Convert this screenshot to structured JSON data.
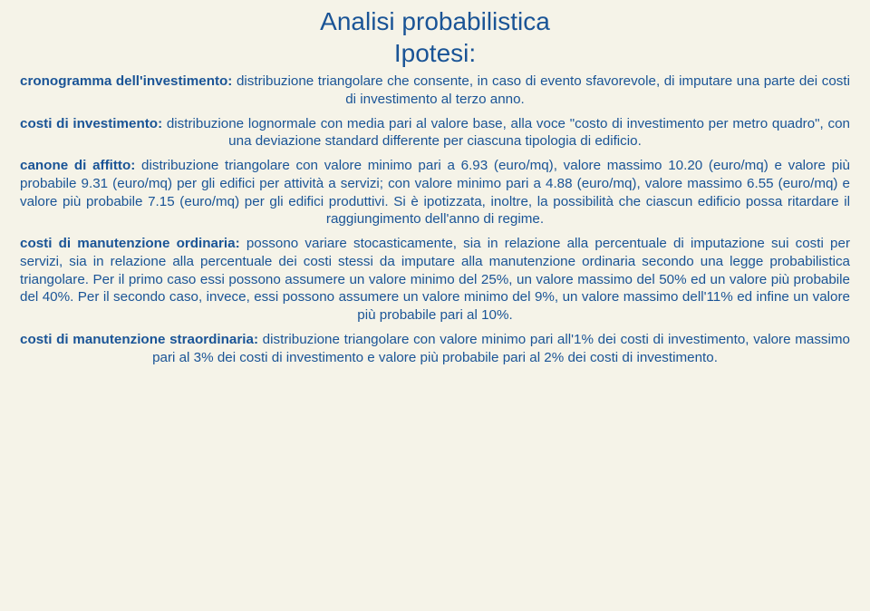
{
  "title_line1": "Analisi probabilistica",
  "title_line2": "Ipotesi:",
  "p1_bold": "cronogramma dell'investimento:",
  "p1_text": " distribuzione triangolare che consente, in caso di evento sfavorevole, di imputare una parte dei costi di investimento al terzo anno.",
  "p2_bold": "costi di investimento:",
  "p2_text": " distribuzione lognormale con media pari al valore base, alla voce \"costo di investimento per metro quadro\", con una deviazione standard differente per ciascuna tipologia di edificio.",
  "p3_bold": "canone di affitto:",
  "p3_text": " distribuzione triangolare con valore minimo pari a 6.93 (euro/mq), valore massimo 10.20 (euro/mq) e valore più probabile 9.31 (euro/mq) per gli edifici per attività a servizi; con valore minimo pari a 4.88 (euro/mq), valore massimo 6.55 (euro/mq) e valore più probabile 7.15 (euro/mq) per gli edifici produttivi. Si è ipotizzata, inoltre, la possibilità che ciascun edificio possa ritardare il raggiungimento dell'anno di regime.",
  "p4_bold": "costi di manutenzione ordinaria:",
  "p4_text": " possono variare stocasticamente, sia in relazione alla percentuale di imputazione sui costi per servizi, sia in relazione alla percentuale dei costi stessi da imputare alla manutenzione ordinaria secondo una legge probabilistica triangolare. Per il primo caso essi possono assumere un valore minimo del 25%, un valore massimo del 50% ed un valore più probabile del 40%. Per il secondo caso, invece, essi possono assumere un valore minimo del 9%, un valore massimo dell'11% ed infine un valore più probabile pari al 10%.",
  "p5_bold": "costi di manutenzione straordinaria:",
  "p5_text": " distribuzione triangolare con valore minimo pari all'1% dei costi di investimento, valore massimo pari al 3% dei costi di investimento e valore più probabile pari al 2% dei costi di investimento."
}
